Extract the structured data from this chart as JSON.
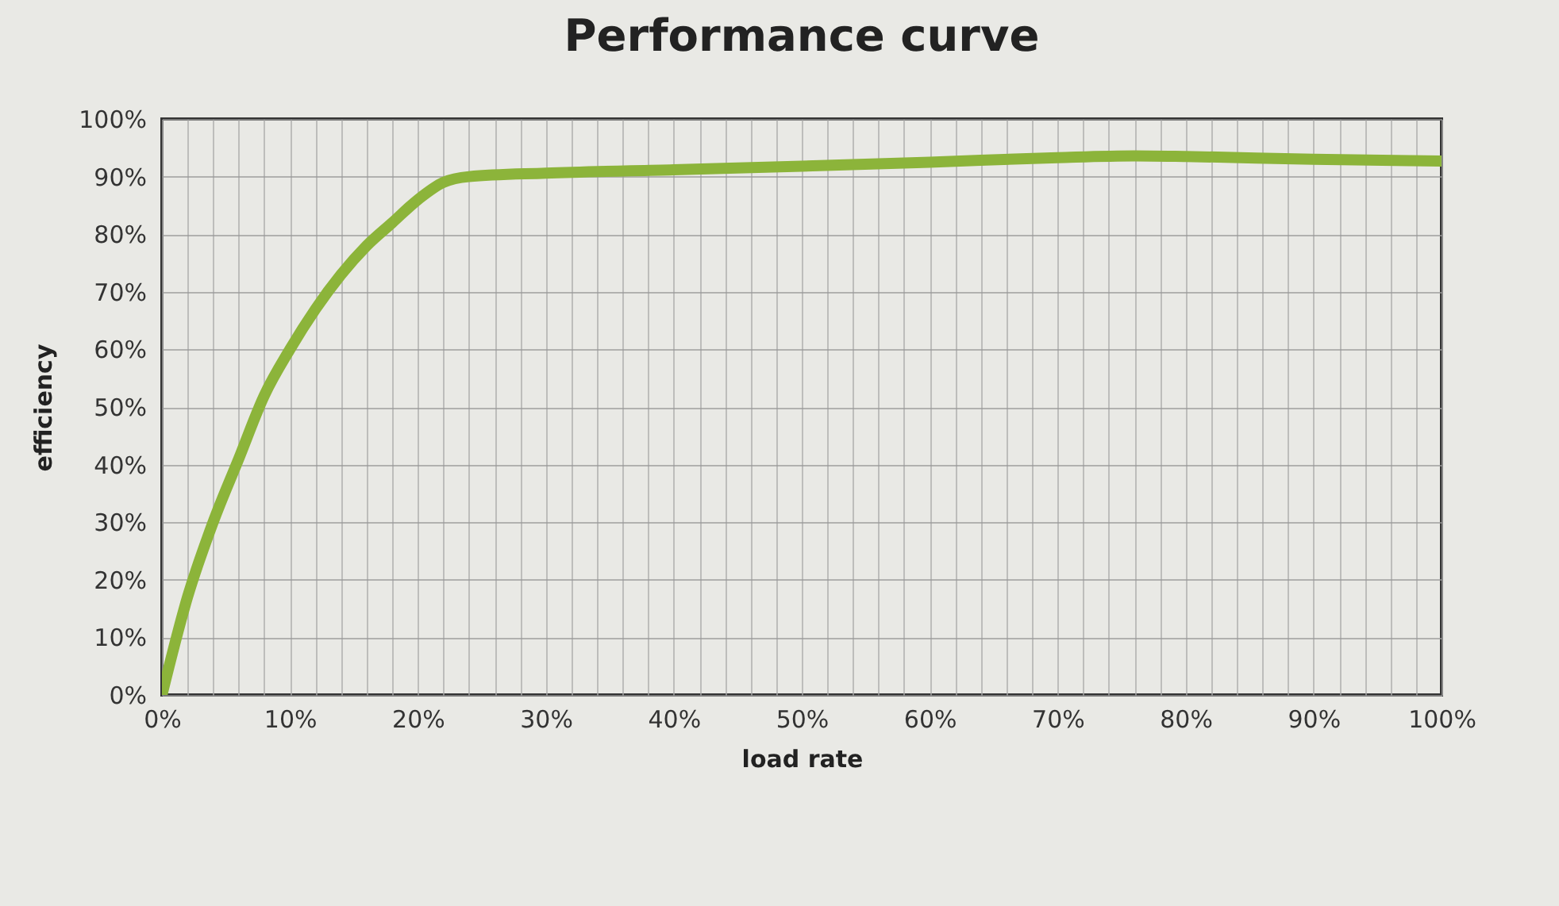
{
  "chart_data": {
    "type": "line",
    "title": "Performance curve",
    "xlabel": "load rate",
    "ylabel": "efficiency",
    "x": [
      0,
      2,
      4,
      6,
      8,
      10,
      12,
      14,
      16,
      18,
      20,
      22,
      24,
      30,
      40,
      50,
      60,
      70,
      76,
      80,
      90,
      100
    ],
    "series": [
      {
        "color": "#8cb43a",
        "values": [
          0,
          17,
          30,
          41,
          52,
          60,
          67,
          73,
          78,
          82,
          86,
          89,
          90,
          90.6,
          91.2,
          91.8,
          92.5,
          93.3,
          93.6,
          93.5,
          93,
          92.7
        ]
      }
    ],
    "xlim": [
      0,
      100
    ],
    "xticks": [
      {
        "value": 0,
        "label": "0%"
      },
      {
        "value": 2,
        "label": null
      },
      {
        "value": 4,
        "label": null
      },
      {
        "value": 6,
        "label": null
      },
      {
        "value": 8,
        "label": null
      },
      {
        "value": 10,
        "label": "10%"
      },
      {
        "value": 12,
        "label": null
      },
      {
        "value": 14,
        "label": null
      },
      {
        "value": 16,
        "label": null
      },
      {
        "value": 18,
        "label": null
      },
      {
        "value": 20,
        "label": "20%"
      },
      {
        "value": 22,
        "label": null
      },
      {
        "value": 24,
        "label": null
      },
      {
        "value": 26,
        "label": null
      },
      {
        "value": 28,
        "label": null
      },
      {
        "value": 30,
        "label": "30%"
      },
      {
        "value": 32,
        "label": null
      },
      {
        "value": 34,
        "label": null
      },
      {
        "value": 36,
        "label": null
      },
      {
        "value": 38,
        "label": null
      },
      {
        "value": 40,
        "label": "40%"
      },
      {
        "value": 42,
        "label": null
      },
      {
        "value": 44,
        "label": null
      },
      {
        "value": 46,
        "label": null
      },
      {
        "value": 48,
        "label": null
      },
      {
        "value": 50,
        "label": "50%"
      },
      {
        "value": 52,
        "label": null
      },
      {
        "value": 54,
        "label": null
      },
      {
        "value": 56,
        "label": null
      },
      {
        "value": 58,
        "label": null
      },
      {
        "value": 60,
        "label": "60%"
      },
      {
        "value": 62,
        "label": null
      },
      {
        "value": 64,
        "label": null
      },
      {
        "value": 66,
        "label": null
      },
      {
        "value": 68,
        "label": null
      },
      {
        "value": 70,
        "label": "70%"
      },
      {
        "value": 72,
        "label": null
      },
      {
        "value": 74,
        "label": null
      },
      {
        "value": 76,
        "label": null
      },
      {
        "value": 78,
        "label": null
      },
      {
        "value": 80,
        "label": "80%"
      },
      {
        "value": 82,
        "label": null
      },
      {
        "value": 84,
        "label": null
      },
      {
        "value": 86,
        "label": null
      },
      {
        "value": 88,
        "label": null
      },
      {
        "value": 90,
        "label": "90%"
      },
      {
        "value": 92,
        "label": null
      },
      {
        "value": 94,
        "label": null
      },
      {
        "value": 96,
        "label": null
      },
      {
        "value": 98,
        "label": null
      },
      {
        "value": 100,
        "label": "100%"
      }
    ],
    "ylim": [
      0,
      100
    ],
    "yticks": [
      {
        "value": 0,
        "label": "0%"
      },
      {
        "value": 10,
        "label": "10%"
      },
      {
        "value": 20,
        "label": "20%"
      },
      {
        "value": 30,
        "label": "30%"
      },
      {
        "value": 40,
        "label": "40%"
      },
      {
        "value": 50,
        "label": "50%"
      },
      {
        "value": 60,
        "label": "60%"
      },
      {
        "value": 70,
        "label": "70%"
      },
      {
        "value": 80,
        "label": "80%"
      },
      {
        "value": 90,
        "label": "90%"
      },
      {
        "value": 100,
        "label": "100%"
      }
    ],
    "grid": true,
    "marker": "none",
    "line_style": "solid"
  }
}
